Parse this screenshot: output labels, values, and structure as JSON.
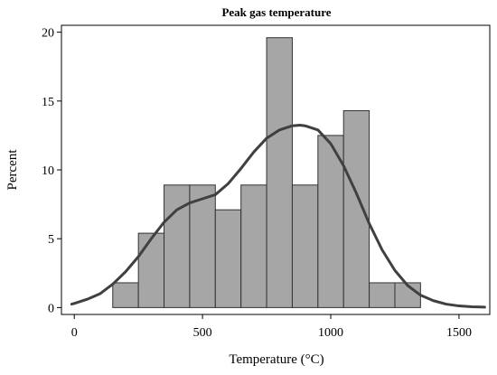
{
  "chart_data": {
    "type": "bar",
    "title": "Peak gas temperature",
    "xlabel": "Temperature (°C)",
    "ylabel": "Percent",
    "xlim": [
      -50,
      1620
    ],
    "ylim": [
      -0.5,
      20.5
    ],
    "xticks": [
      0,
      500,
      1000,
      1500
    ],
    "yticks": [
      0,
      5,
      10,
      15,
      20
    ],
    "grid": false,
    "bins": [
      {
        "x0": 150,
        "x1": 250,
        "value": 1.8
      },
      {
        "x0": 250,
        "x1": 350,
        "value": 5.4
      },
      {
        "x0": 350,
        "x1": 450,
        "value": 8.9
      },
      {
        "x0": 450,
        "x1": 550,
        "value": 8.9
      },
      {
        "x0": 550,
        "x1": 650,
        "value": 7.1
      },
      {
        "x0": 650,
        "x1": 750,
        "value": 8.9
      },
      {
        "x0": 750,
        "x1": 850,
        "value": 19.6
      },
      {
        "x0": 850,
        "x1": 950,
        "value": 8.9
      },
      {
        "x0": 950,
        "x1": 1050,
        "value": 12.5
      },
      {
        "x0": 1050,
        "x1": 1150,
        "value": 14.3
      },
      {
        "x0": 1150,
        "x1": 1250,
        "value": 1.8
      },
      {
        "x0": 1250,
        "x1": 1350,
        "value": 1.8
      }
    ],
    "density_curve": {
      "x": [
        -10,
        0,
        50,
        100,
        150,
        200,
        250,
        300,
        350,
        400,
        450,
        500,
        550,
        600,
        650,
        700,
        750,
        800,
        850,
        880,
        900,
        950,
        1000,
        1050,
        1100,
        1150,
        1200,
        1250,
        1300,
        1350,
        1400,
        1450,
        1500,
        1550,
        1600
      ],
      "y": [
        0.25,
        0.3,
        0.6,
        1.0,
        1.7,
        2.6,
        3.7,
        5.0,
        6.2,
        7.1,
        7.6,
        7.9,
        8.2,
        9.0,
        10.1,
        11.3,
        12.3,
        12.9,
        13.2,
        13.25,
        13.2,
        12.9,
        11.9,
        10.3,
        8.3,
        6.1,
        4.2,
        2.7,
        1.6,
        0.9,
        0.5,
        0.25,
        0.12,
        0.06,
        0.03
      ]
    },
    "colors": {
      "bar_fill": "#a6a6a6",
      "bar_stroke": "#333333",
      "curve": "#404040",
      "axis": "#000000"
    }
  }
}
